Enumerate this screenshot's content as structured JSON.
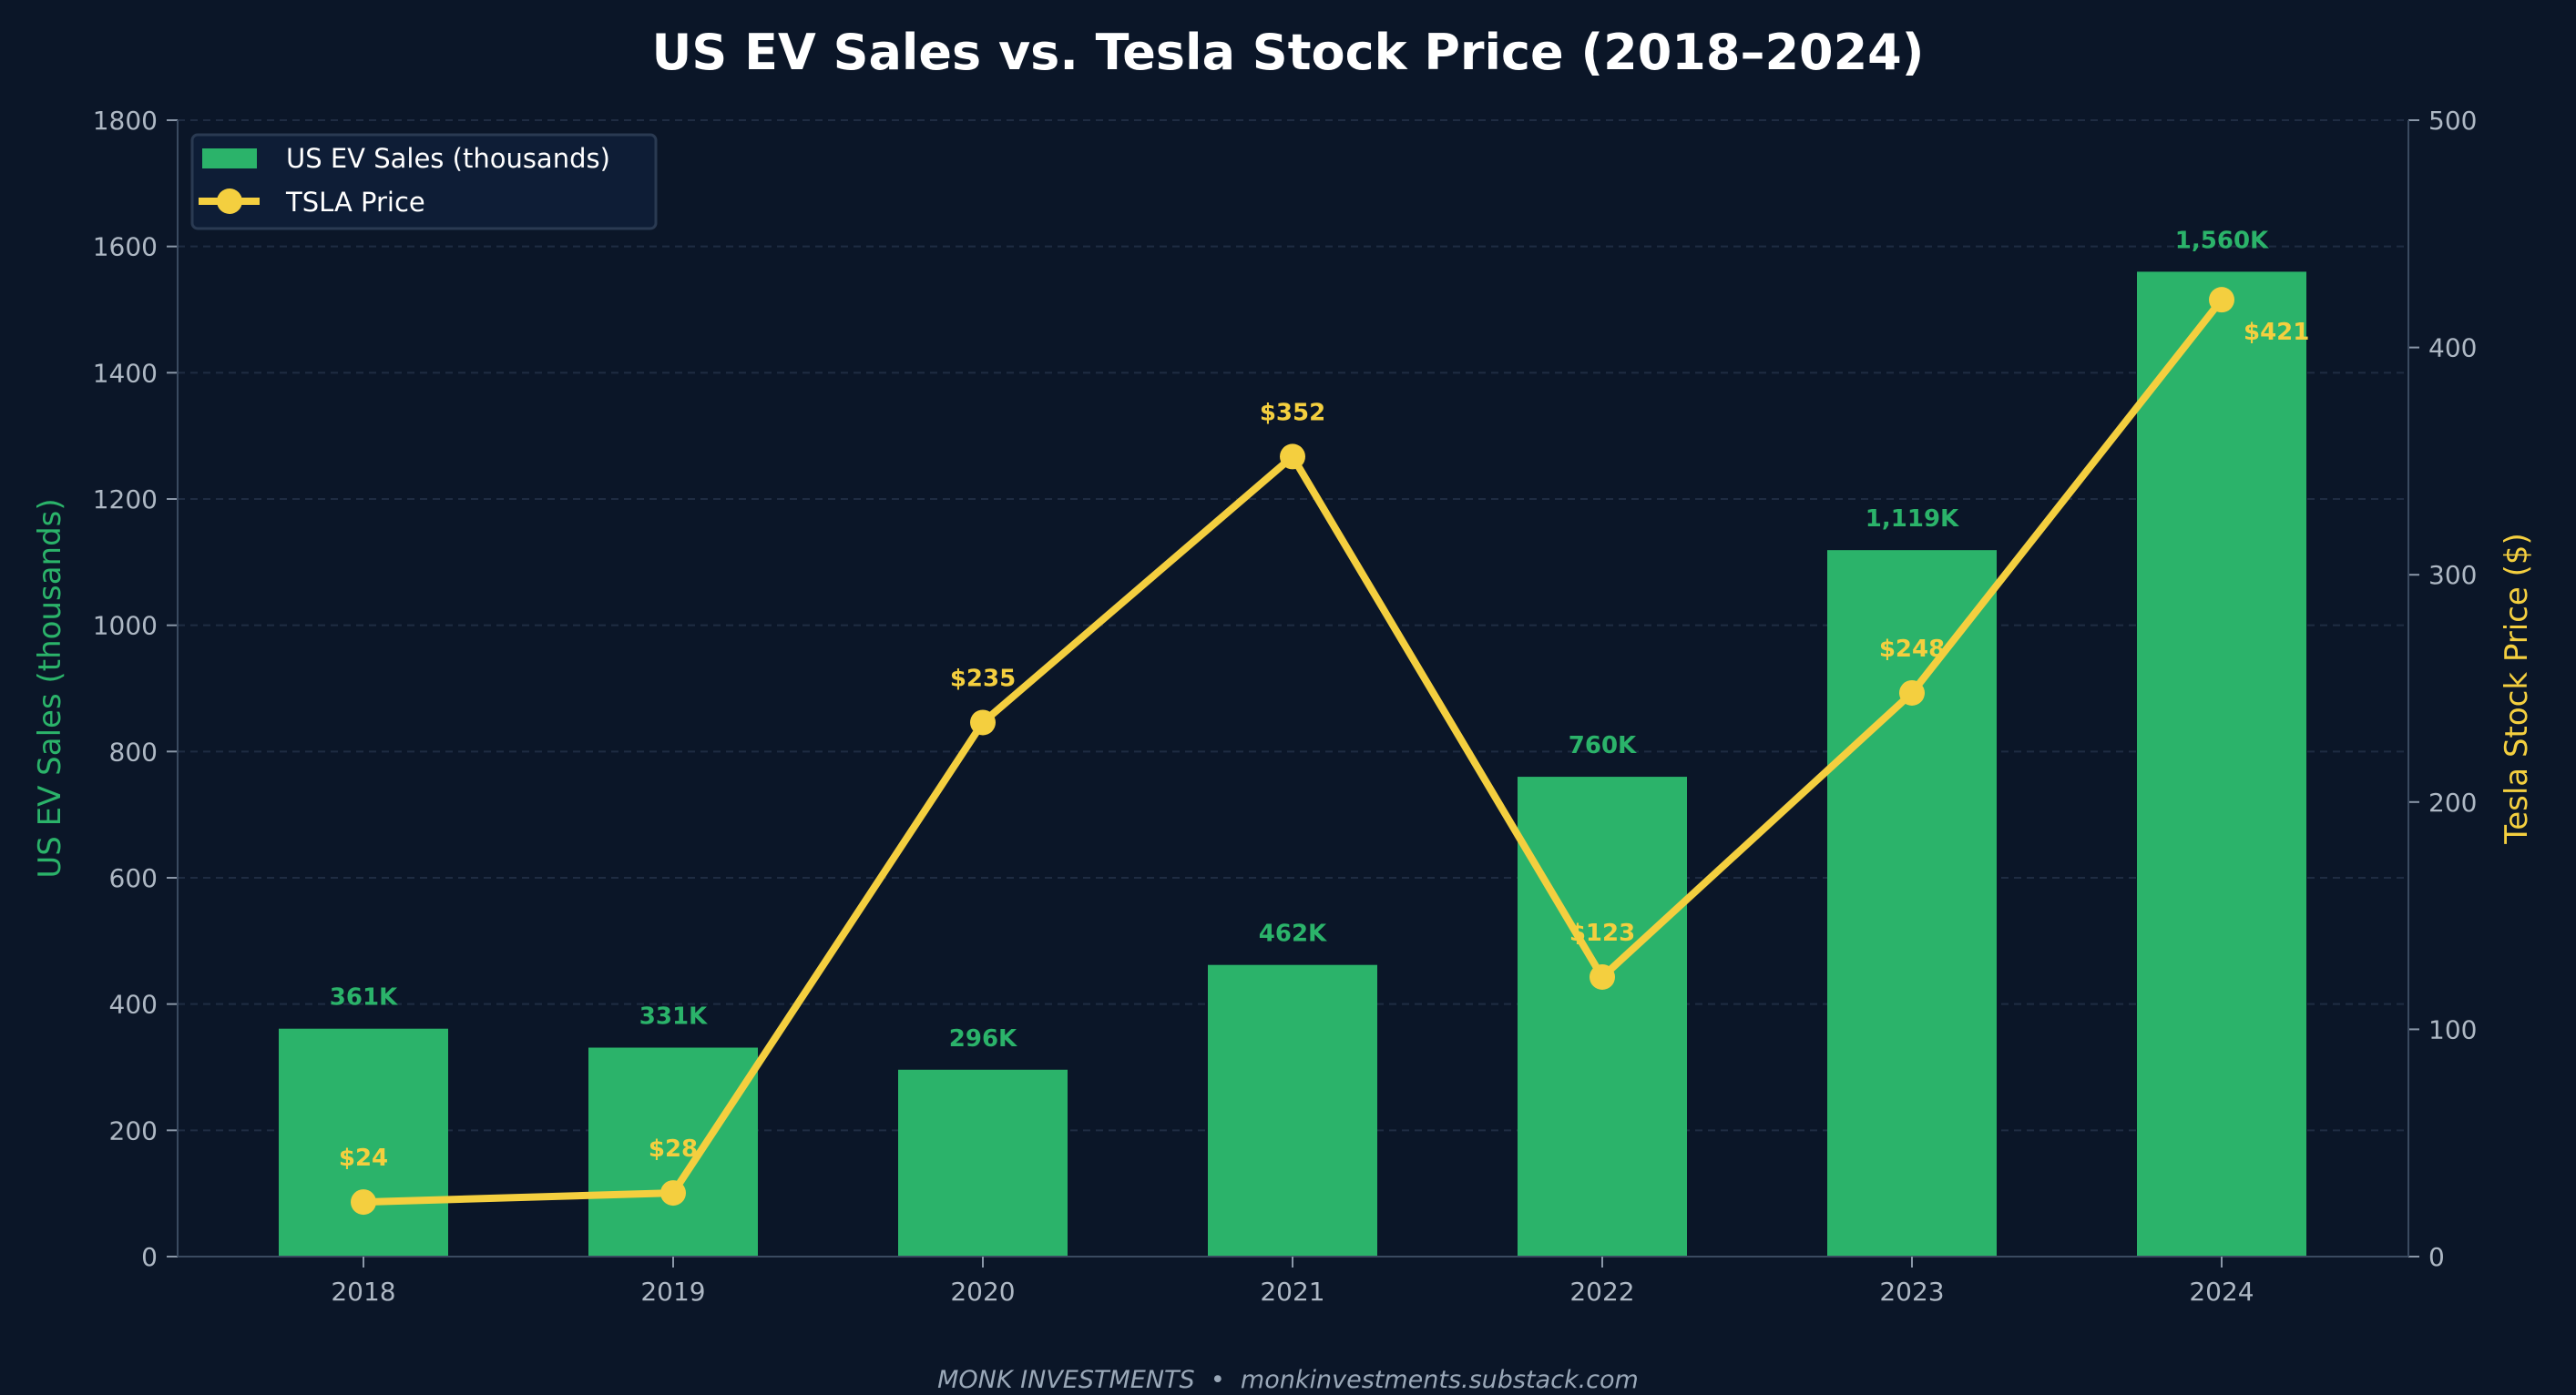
{
  "chart_data": {
    "type": "bar+line",
    "title": "US EV Sales vs. Tesla Stock Price (2018–2024)",
    "categories": [
      "2018",
      "2019",
      "2020",
      "2021",
      "2022",
      "2023",
      "2024"
    ],
    "series": [
      {
        "name": "US EV Sales (thousands)",
        "type": "bar",
        "axis": "left",
        "color": "#2bb36a",
        "values": [
          361,
          331,
          296,
          462,
          760,
          1119,
          1560
        ],
        "labels": [
          "361K",
          "331K",
          "296K",
          "462K",
          "760K",
          "1,119K",
          "1,560K"
        ]
      },
      {
        "name": "TSLA Price",
        "type": "line",
        "axis": "right",
        "color": "#f4cf3f",
        "values": [
          24,
          28,
          235,
          352,
          123,
          248,
          421
        ],
        "labels": [
          "$24",
          "$28",
          "$235",
          "$352",
          "$123",
          "$248",
          "$421"
        ]
      }
    ],
    "ylabel": "US EV Sales (thousands)",
    "ylabel_right": "Tesla Stock Price ($)",
    "ylim": [
      0,
      1800
    ],
    "ylim_right": [
      0,
      500
    ],
    "yticks": [
      0,
      200,
      400,
      600,
      800,
      1000,
      1200,
      1400,
      1600,
      1800
    ],
    "yticks_right": [
      0,
      100,
      200,
      300,
      400,
      500
    ],
    "grid": true,
    "legend": "top-left"
  },
  "footer": "MONK INVESTMENTS  •  monkinvestments.substack.com"
}
